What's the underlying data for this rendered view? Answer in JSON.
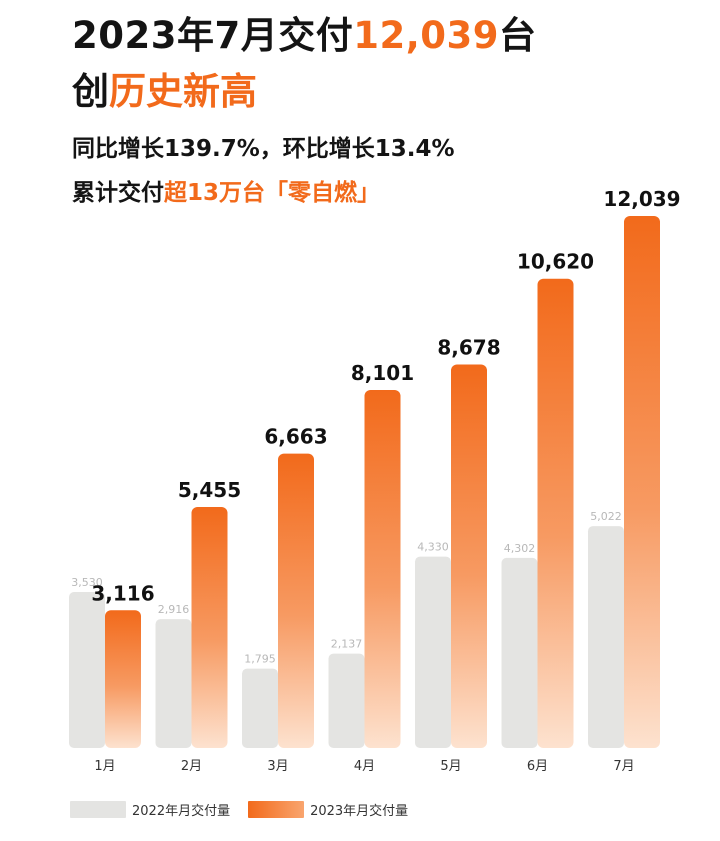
{
  "headline": {
    "line1_prefix": "2023年7月交付",
    "line1_highlight": "12,039",
    "line1_suffix": "台",
    "line2_prefix": "创",
    "line2_highlight": "历史新高",
    "line3": "同比增长139.7%，环比增长13.4%",
    "line4_prefix": "累计交付",
    "line4_highlight": "超13万台「零自燃」"
  },
  "colors": {
    "accent": "#f26a1b",
    "bar_2022": "#e4e4e2",
    "bar_2023_top": "#f26a1b",
    "bar_2023_bottom": "#fde2cf"
  },
  "chart_data": {
    "type": "bar",
    "categories": [
      "1月",
      "2月",
      "3月",
      "4月",
      "5月",
      "6月",
      "7月"
    ],
    "series": [
      {
        "name": "2022年月交付量",
        "values": [
          3530,
          2916,
          1795,
          2137,
          4330,
          4302,
          5022
        ],
        "labels": [
          "3,530",
          "2,916",
          "1,795",
          "2,137",
          "4,330",
          "4,302",
          "5,022"
        ]
      },
      {
        "name": "2023年月交付量",
        "values": [
          3116,
          5455,
          6663,
          8101,
          8678,
          10620,
          12039
        ],
        "labels": [
          "3,116",
          "5,455",
          "6,663",
          "8,101",
          "8,678",
          "10,620",
          "12,039"
        ]
      }
    ],
    "title": "",
    "xlabel": "",
    "ylabel": "",
    "ylim": [
      0,
      13000
    ],
    "grid": false,
    "legend": "bottom-left"
  }
}
